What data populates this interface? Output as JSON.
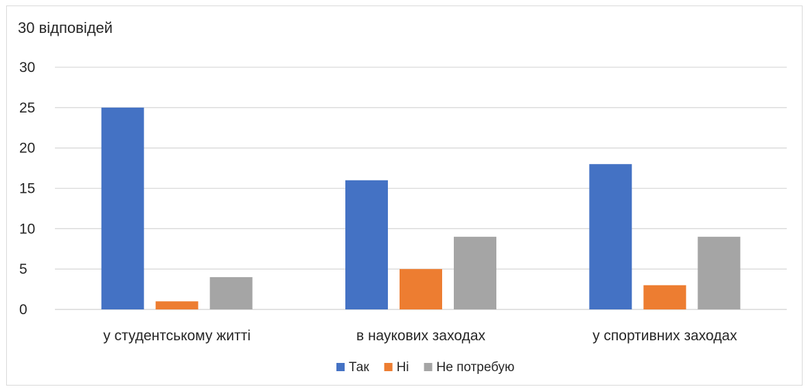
{
  "chart_data": {
    "type": "bar",
    "title": "30 відповідей",
    "categories": [
      "у студентському житті",
      "в наукових заходах",
      "у спортивних заходах"
    ],
    "series": [
      {
        "name": "Так",
        "color": "#4472c4",
        "values": [
          25,
          16,
          18
        ]
      },
      {
        "name": "Ні",
        "color": "#ed7d31",
        "values": [
          1,
          5,
          3
        ]
      },
      {
        "name": "Не потребую",
        "color": "#a5a5a5",
        "values": [
          4,
          9,
          9
        ]
      }
    ],
    "ylim": [
      0,
      30
    ],
    "yticks": [
      0,
      5,
      10,
      15,
      20,
      25,
      30
    ],
    "grid": true,
    "legend_position": "bottom"
  }
}
